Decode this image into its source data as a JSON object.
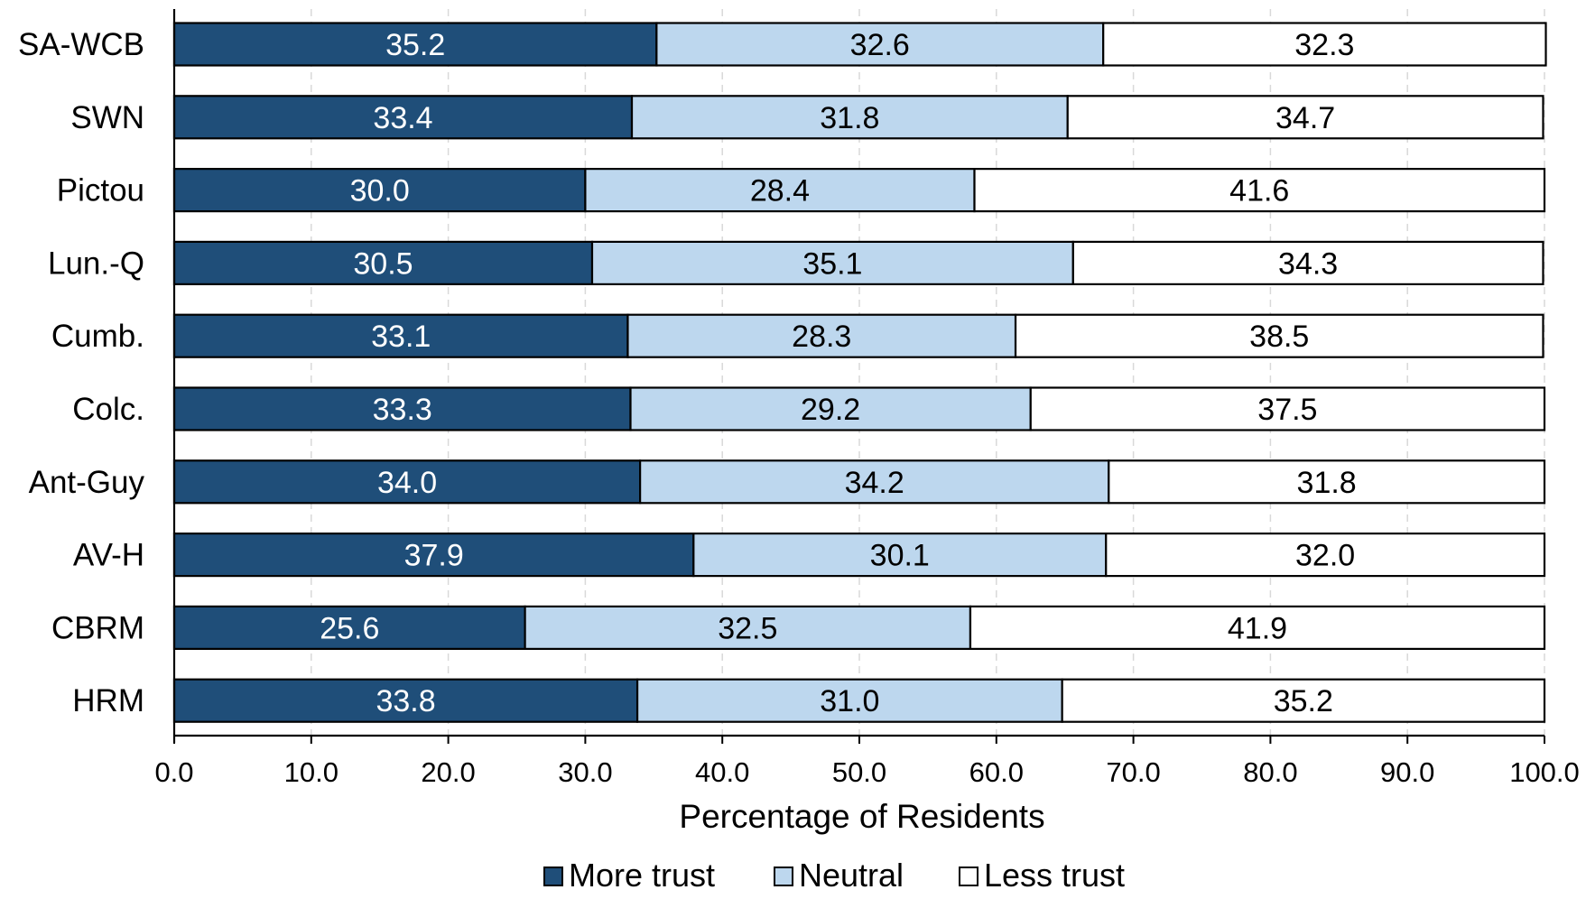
{
  "chart_data": {
    "type": "bar",
    "orientation": "horizontal",
    "stacked": true,
    "categories": [
      "SA-WCB",
      "SWN",
      "Pictou",
      "Lun.-Q",
      "Cumb.",
      "Colc.",
      "Ant-Guy",
      "AV-H",
      "CBRM",
      "HRM"
    ],
    "series": [
      {
        "name": "More trust",
        "color": "#1f4e79",
        "label_color": "#ffffff",
        "values": [
          35.2,
          33.4,
          30.0,
          30.5,
          33.1,
          33.3,
          34.0,
          37.9,
          25.6,
          33.8
        ],
        "labels": [
          "35.2",
          "33.4",
          "30.0",
          "30.5",
          "33.1",
          "33.3",
          "34.0",
          "37.9",
          "25.6",
          "33.8"
        ]
      },
      {
        "name": "Neutral",
        "color": "#bdd7ee",
        "label_color": "#000000",
        "values": [
          32.6,
          31.8,
          28.4,
          35.1,
          28.3,
          29.2,
          34.2,
          30.1,
          32.5,
          31.0
        ],
        "labels": [
          "32.6",
          "31.8",
          "28.4",
          "35.1",
          "28.3",
          "29.2",
          "34.2",
          "30.1",
          "32.5",
          "31.0"
        ]
      },
      {
        "name": "Less trust",
        "color": "#ffffff",
        "label_color": "#000000",
        "values": [
          32.3,
          34.7,
          41.6,
          34.3,
          38.5,
          37.5,
          31.8,
          32.0,
          41.9,
          35.2
        ],
        "labels": [
          "32.3",
          "34.7",
          "41.6",
          "34.3",
          "38.5",
          "37.5",
          "31.8",
          "32.0",
          "41.9",
          "35.2"
        ]
      }
    ],
    "xlabel": "Percentage of Residents",
    "ylabel": "",
    "xlim": [
      0,
      100
    ],
    "xticks": [
      "0.0",
      "10.0",
      "20.0",
      "30.0",
      "40.0",
      "50.0",
      "60.0",
      "70.0",
      "80.0",
      "90.0",
      "100.0"
    ],
    "grid": "vertical dashed",
    "legend_position": "bottom"
  }
}
